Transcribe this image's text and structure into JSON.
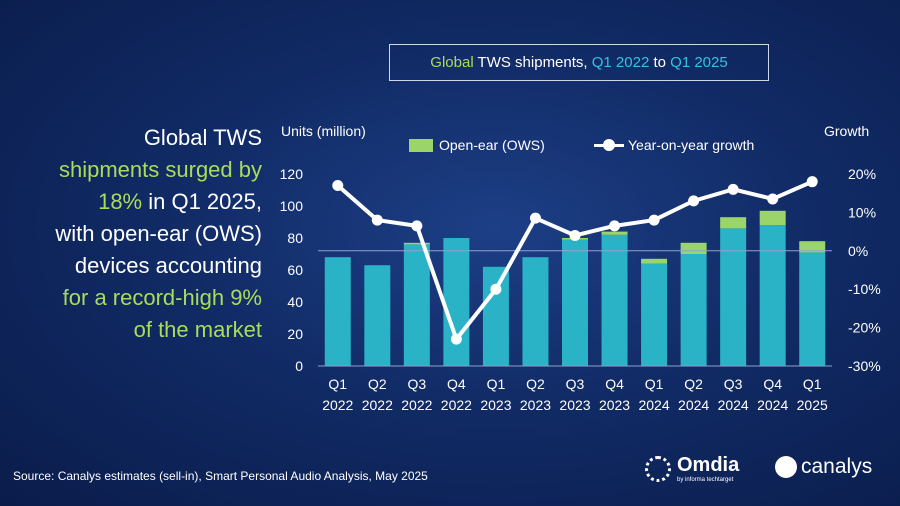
{
  "title_box": {
    "part1": "Global",
    "part2": " TWS shipments, ",
    "part3": "Q1 2022",
    "part4": " to ",
    "part5": "Q1 2025"
  },
  "headline": {
    "line1": "Global TWS",
    "line2": "shipments surged by",
    "line3_highlight": "18%",
    "line3_rest": " in Q1 2025,",
    "line4": "with open-ear (OWS)",
    "line5": "devices accounting",
    "line6": "for a record-high 9%",
    "line7": "of the market"
  },
  "source": "Source: Canalys estimates (sell-in), Smart Personal Audio Analysis, May 2025",
  "logos": {
    "omdia": "Omdia",
    "omdia_sub": "by informa techtarget",
    "canalys": "canalys"
  },
  "colors": {
    "tws_bar": "#2ab2c7",
    "ows_bar": "#9bd56a",
    "line": "#ffffff",
    "highlight_green": "#a9dc5a",
    "highlight_cyan": "#33c3df"
  },
  "chart_data": {
    "type": "bar+line",
    "title": "Global TWS shipments, Q1 2022 to Q1 2025",
    "ylabel": "Units (million)",
    "y2label": "Growth",
    "ylim": [
      0,
      120
    ],
    "y2lim": [
      -30,
      20
    ],
    "yticks": [
      0,
      20,
      40,
      60,
      80,
      100,
      120
    ],
    "y2ticks": [
      "-30%",
      "-20%",
      "-10%",
      "0%",
      "10%",
      "20%"
    ],
    "y2tick_values": [
      -30,
      -20,
      -10,
      0,
      10,
      20
    ],
    "categories": [
      [
        "Q1",
        "2022"
      ],
      [
        "Q2",
        "2022"
      ],
      [
        "Q3",
        "2022"
      ],
      [
        "Q4",
        "2022"
      ],
      [
        "Q1",
        "2023"
      ],
      [
        "Q2",
        "2023"
      ],
      [
        "Q3",
        "2023"
      ],
      [
        "Q4",
        "2023"
      ],
      [
        "Q1",
        "2024"
      ],
      [
        "Q2",
        "2024"
      ],
      [
        "Q3",
        "2024"
      ],
      [
        "Q4",
        "2024"
      ],
      [
        "Q1",
        "2025"
      ]
    ],
    "series": [
      {
        "name": "TWS",
        "axis": "left",
        "values": [
          68,
          63,
          76,
          80,
          62,
          68,
          79,
          82,
          64,
          70,
          86,
          88,
          71
        ]
      },
      {
        "name": "Open-ear (OWS)",
        "axis": "left",
        "stacked": true,
        "values": [
          0,
          0,
          1,
          0,
          0,
          0,
          1,
          2,
          3,
          7,
          7,
          9,
          7
        ]
      },
      {
        "name": "Year-on-year growth",
        "axis": "right",
        "type": "line",
        "values": [
          17,
          8,
          6.5,
          -23,
          -10,
          8.5,
          4,
          6.5,
          8,
          13,
          16,
          13.5,
          18
        ]
      }
    ],
    "legend": "top",
    "grid": false
  }
}
